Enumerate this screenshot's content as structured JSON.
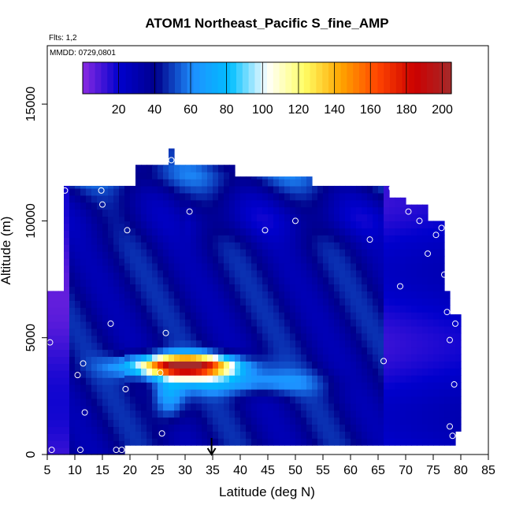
{
  "chart_data": {
    "type": "heatmap",
    "title": "ATOM1 Northeast_Pacific S_fine_AMP",
    "annotations": [
      "Flts: 1,2",
      "MMDD: 0729,0801"
    ],
    "xlabel": "Latitude (deg N)",
    "ylabel": "Altitude (m)",
    "xlim": [
      5,
      85
    ],
    "ylim": [
      0,
      17500
    ],
    "xticks": [
      5,
      10,
      15,
      20,
      25,
      30,
      35,
      40,
      45,
      50,
      55,
      60,
      65,
      70,
      75,
      80,
      85
    ],
    "yticks": [
      0,
      5000,
      10000,
      15000
    ],
    "colorbar": {
      "range": [
        0,
        205
      ],
      "ticks": [
        20,
        40,
        60,
        80,
        100,
        120,
        140,
        160,
        180,
        200
      ],
      "colors": [
        "#8a2be2",
        "#0000cd",
        "#00008b",
        "#1e90ff",
        "#00bfff",
        "#ffffff",
        "#ffff66",
        "#ffa500",
        "#ff4500",
        "#cc0000",
        "#a52a2a"
      ]
    },
    "arrow_marker": {
      "latitude": 34.8,
      "label": "35"
    },
    "hotspot": {
      "latitude_center": 30,
      "altitude_center": 3800,
      "peak_value": 205
    },
    "sample_points": [
      [
        5.5,
        4800
      ],
      [
        5.8,
        200
      ],
      [
        8.2,
        11300
      ],
      [
        10.5,
        3400
      ],
      [
        11.0,
        200
      ],
      [
        11.5,
        3900
      ],
      [
        11.8,
        1800
      ],
      [
        14.8,
        11300
      ],
      [
        15.0,
        10700
      ],
      [
        16.5,
        5600
      ],
      [
        17.5,
        200
      ],
      [
        18.5,
        200
      ],
      [
        19.2,
        2800
      ],
      [
        19.5,
        9600
      ],
      [
        25.5,
        3500
      ],
      [
        25.8,
        900
      ],
      [
        26.5,
        5200
      ],
      [
        27.5,
        12600
      ],
      [
        30.8,
        10400
      ],
      [
        44.5,
        9600
      ],
      [
        50.0,
        10000
      ],
      [
        63.5,
        9200
      ],
      [
        66.0,
        4000
      ],
      [
        67.5,
        11400
      ],
      [
        69.0,
        7200
      ],
      [
        70.5,
        10400
      ],
      [
        72.5,
        10000
      ],
      [
        74.0,
        8600
      ],
      [
        75.5,
        9400
      ],
      [
        76.5,
        9700
      ],
      [
        77.0,
        7700
      ],
      [
        77.5,
        6100
      ],
      [
        78.0,
        4900
      ],
      [
        78.0,
        1200
      ],
      [
        78.5,
        800
      ],
      [
        78.8,
        3000
      ],
      [
        79.0,
        5600
      ]
    ]
  }
}
